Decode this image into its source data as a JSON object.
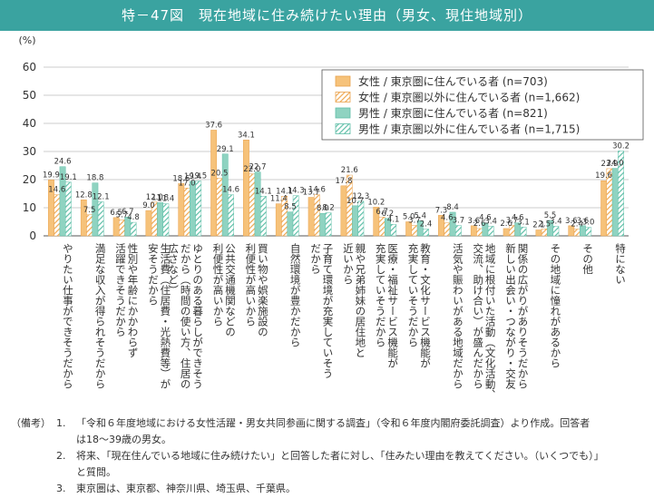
{
  "header": {
    "title": "特－47図　現在地域に住み続けたい理由（男女、現住地域別）"
  },
  "chart_data": {
    "type": "bar",
    "ylabel": "(%)",
    "ylim": [
      0,
      60
    ],
    "yticks": [
      "0",
      "10",
      "20",
      "30",
      "40",
      "50",
      "60"
    ],
    "grid": true,
    "legend_position": "top-right",
    "categories": [
      "やりたい仕事ができそうだから",
      "満足な収入が得られそうだから",
      "性別や年齢にかかわらず活躍できそうだから",
      "生活費（住居費・光熱費等）が安そうだから",
      "ゆとりのある暮らしができそうだから（時間の使い方、住居の広さなど）",
      "公共交通機関などの利便性が高いから",
      "買い物や娯楽施設の利便性が高いから",
      "自然環境が豊かだから",
      "子育て環境が充実していそうだから",
      "親や兄弟姉妹の居住地と近いから",
      "医療・福祉サービス機能が充実していそうだから",
      "教育・文化サービス機能が充実していそうだから",
      "活気や賑わいがある地域だから",
      "地域に根付いた活動（文化活動、交流、助け合い）が盛んだから",
      "新しい出会い・つながり・交友関係の広がりがありそうだから",
      "その地域に憧れがあるから",
      "その他",
      "特にない"
    ],
    "category_lines": [
      [
        "やりたい仕事ができそうだから"
      ],
      [
        "満足な収入が得られそうだから"
      ],
      [
        "性別や年齢にかかわらず",
        "活躍できそうだから"
      ],
      [
        "生活費（住居費・光熱費等）が",
        "安そうだから"
      ],
      [
        "ゆとりのある暮らしができそう",
        "だから（時間の使い方、住居の",
        "広さなど）"
      ],
      [
        "公共交通機関などの",
        "利便性が高いから"
      ],
      [
        "買い物や娯楽施設の",
        "利便性が高いから"
      ],
      [
        "自然環境が豊かだから"
      ],
      [
        "子育て環境が充実していそう",
        "だから"
      ],
      [
        "親や兄弟姉妹の居住地と",
        "近いから"
      ],
      [
        "医療・福祉サービス機能が",
        "充実していそうだから"
      ],
      [
        "教育・文化サービス機能が",
        "充実していそうだから"
      ],
      [
        "活気や賑わいがある地域だから"
      ],
      [
        "地域に根付いた活動（文化活動、",
        "交流、助け合い）が盛んだから"
      ],
      [
        "関係の広がりがありそうだから",
        "新しい出会い・つながり・交友"
      ],
      [
        "その地域に憧れがあるから"
      ],
      [
        "その他"
      ],
      [
        "特にない"
      ]
    ],
    "series": [
      {
        "name": "女性 / 東京圏に住んでいる者 (n=703)",
        "color": "#f6c27a",
        "pattern": "solid",
        "values": [
          19.9,
          12.8,
          6.5,
          9.0,
          18.6,
          37.6,
          34.1,
          11.4,
          13.7,
          17.8,
          10.2,
          5.0,
          7.3,
          3.6,
          2.6,
          2.1,
          3.6,
          19.6
        ]
      },
      {
        "name": "女性 / 東京圏以外に住んでいる者 (n=1,662)",
        "color": "#f6c27a",
        "pattern": "hatch",
        "values": [
          14.6,
          7.5,
          5.7,
          12.0,
          17.0,
          20.5,
          22.0,
          14.1,
          14.6,
          21.6,
          6.7,
          3.7,
          4.6,
          2.6,
          3.7,
          2.5,
          2.4,
          23.9
        ]
      },
      {
        "name": "男性 / 東京圏に住んでいる者 (n=821)",
        "color": "#8fd3c1",
        "pattern": "solid",
        "values": [
          24.6,
          18.8,
          6.7,
          11.8,
          19.4,
          29.1,
          22.7,
          8.5,
          8.0,
          10.7,
          6.2,
          5.4,
          8.4,
          4.6,
          4.6,
          5.5,
          3.6,
          24.0
        ]
      },
      {
        "name": "男性 / 東京圏以外に住んでいる者 (n=1,715)",
        "color": "#8fd3c1",
        "pattern": "hatch",
        "values": [
          19.1,
          12.1,
          4.8,
          11.4,
          19.5,
          14.6,
          14.1,
          14.3,
          8.2,
          12.3,
          4.1,
          2.4,
          3.7,
          3.4,
          3.1,
          3.4,
          3.0,
          30.2
        ]
      }
    ]
  },
  "notes": {
    "label": "（備考）",
    "items": [
      {
        "num": "1.",
        "lines": [
          "「令和６年度地域における女性活躍・男女共同参画に関する調査」（令和６年度内閣府委託調査）より作成。回答者",
          "は18～39歳の男女。"
        ]
      },
      {
        "num": "2.",
        "lines": [
          "将来、「現在住んでいる地域に住み続けたい」と回答した者に対し、「住みたい理由を教えてください。（いくつでも）」",
          "と質問。"
        ]
      },
      {
        "num": "3.",
        "lines": [
          "東京圏は、東京都、神奈川県、埼玉県、千葉県。"
        ]
      }
    ]
  }
}
